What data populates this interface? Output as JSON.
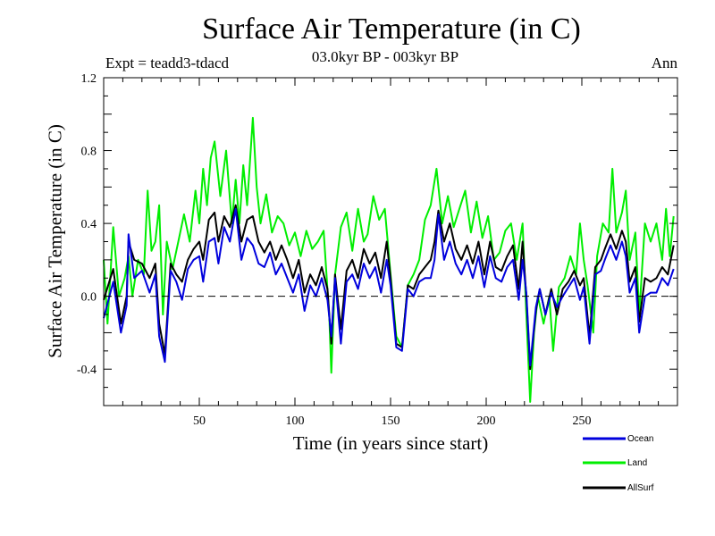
{
  "chart_data": {
    "type": "line",
    "title": "Surface Air Temperature (in C)",
    "subtitle": "03.0kyr BP - 003kyr BP",
    "experiment": "Expt = teadd3-tdacd",
    "season": "Ann",
    "xlabel": "Time (in years since start)",
    "ylabel": "Surface Air Temperature (in C)",
    "xlim": [
      0,
      300
    ],
    "ylim": [
      -0.6,
      1.2
    ],
    "xticks": [
      50,
      100,
      150,
      200,
      250
    ],
    "yticks": [
      -0.4,
      0.0,
      0.4,
      0.8,
      1.2
    ],
    "ytick_labels": [
      "-0.4",
      "0.0",
      "0.4",
      "0.8",
      "1.2"
    ],
    "reference_line": 0.0,
    "series": [
      {
        "name": "Ocean",
        "color": "#0000dd",
        "points": [
          [
            0,
            -0.12
          ],
          [
            5,
            0.08
          ],
          [
            9,
            -0.2
          ],
          [
            12,
            -0.05
          ],
          [
            13,
            0.34
          ],
          [
            16,
            0.1
          ],
          [
            20,
            0.14
          ],
          [
            24,
            0.02
          ],
          [
            27,
            0.12
          ],
          [
            29,
            -0.22
          ],
          [
            32,
            -0.36
          ],
          [
            35,
            0.14
          ],
          [
            38,
            0.08
          ],
          [
            41,
            -0.02
          ],
          [
            44,
            0.15
          ],
          [
            47,
            0.2
          ],
          [
            50,
            0.22
          ],
          [
            52,
            0.08
          ],
          [
            55,
            0.3
          ],
          [
            58,
            0.32
          ],
          [
            60,
            0.18
          ],
          [
            63,
            0.38
          ],
          [
            66,
            0.3
          ],
          [
            69,
            0.48
          ],
          [
            72,
            0.2
          ],
          [
            75,
            0.32
          ],
          [
            78,
            0.28
          ],
          [
            81,
            0.18
          ],
          [
            84,
            0.16
          ],
          [
            87,
            0.24
          ],
          [
            90,
            0.12
          ],
          [
            93,
            0.18
          ],
          [
            96,
            0.1
          ],
          [
            99,
            0.02
          ],
          [
            102,
            0.12
          ],
          [
            105,
            -0.08
          ],
          [
            108,
            0.06
          ],
          [
            111,
            0.0
          ],
          [
            114,
            0.1
          ],
          [
            117,
            -0.02
          ],
          [
            119,
            -0.22
          ],
          [
            121,
            0.1
          ],
          [
            124,
            -0.26
          ],
          [
            127,
            0.08
          ],
          [
            130,
            0.12
          ],
          [
            133,
            0.04
          ],
          [
            136,
            0.18
          ],
          [
            139,
            0.1
          ],
          [
            142,
            0.16
          ],
          [
            145,
            0.02
          ],
          [
            148,
            0.2
          ],
          [
            150,
            0.06
          ],
          [
            153,
            -0.28
          ],
          [
            156,
            -0.3
          ],
          [
            159,
            0.04
          ],
          [
            162,
            0.0
          ],
          [
            165,
            0.08
          ],
          [
            168,
            0.1
          ],
          [
            171,
            0.1
          ],
          [
            173,
            0.2
          ],
          [
            175,
            0.45
          ],
          [
            178,
            0.2
          ],
          [
            181,
            0.3
          ],
          [
            184,
            0.18
          ],
          [
            187,
            0.12
          ],
          [
            190,
            0.2
          ],
          [
            193,
            0.1
          ],
          [
            196,
            0.22
          ],
          [
            199,
            0.05
          ],
          [
            202,
            0.22
          ],
          [
            205,
            0.1
          ],
          [
            208,
            0.08
          ],
          [
            211,
            0.16
          ],
          [
            214,
            0.2
          ],
          [
            217,
            -0.02
          ],
          [
            219,
            0.2
          ],
          [
            221,
            0.02
          ],
          [
            223,
            -0.38
          ],
          [
            226,
            -0.06
          ],
          [
            228,
            0.04
          ],
          [
            231,
            -0.1
          ],
          [
            234,
            0.02
          ],
          [
            237,
            -0.06
          ],
          [
            240,
            0.0
          ],
          [
            243,
            0.05
          ],
          [
            246,
            0.1
          ],
          [
            249,
            -0.02
          ],
          [
            251,
            0.05
          ],
          [
            254,
            -0.26
          ],
          [
            257,
            0.12
          ],
          [
            260,
            0.14
          ],
          [
            262,
            0.2
          ],
          [
            265,
            0.28
          ],
          [
            268,
            0.2
          ],
          [
            271,
            0.3
          ],
          [
            273,
            0.22
          ],
          [
            275,
            0.02
          ],
          [
            278,
            0.1
          ],
          [
            280,
            -0.2
          ],
          [
            283,
            0.0
          ],
          [
            286,
            0.02
          ],
          [
            289,
            0.02
          ],
          [
            292,
            0.1
          ],
          [
            295,
            0.06
          ],
          [
            298,
            0.15
          ]
        ]
      },
      {
        "name": "Land",
        "color": "#00ee00",
        "points": [
          [
            0,
            0.2
          ],
          [
            2,
            -0.15
          ],
          [
            5,
            0.38
          ],
          [
            8,
            0.0
          ],
          [
            11,
            0.1
          ],
          [
            13,
            0.22
          ],
          [
            15,
            0.0
          ],
          [
            18,
            0.2
          ],
          [
            21,
            0.12
          ],
          [
            23,
            0.58
          ],
          [
            25,
            0.25
          ],
          [
            27,
            0.3
          ],
          [
            29,
            0.5
          ],
          [
            31,
            -0.1
          ],
          [
            33,
            0.3
          ],
          [
            36,
            0.15
          ],
          [
            39,
            0.3
          ],
          [
            42,
            0.45
          ],
          [
            45,
            0.3
          ],
          [
            48,
            0.58
          ],
          [
            50,
            0.4
          ],
          [
            52,
            0.7
          ],
          [
            54,
            0.5
          ],
          [
            56,
            0.76
          ],
          [
            58,
            0.85
          ],
          [
            61,
            0.55
          ],
          [
            64,
            0.8
          ],
          [
            67,
            0.4
          ],
          [
            69,
            0.64
          ],
          [
            71,
            0.4
          ],
          [
            73,
            0.72
          ],
          [
            75,
            0.5
          ],
          [
            78,
            0.98
          ],
          [
            80,
            0.6
          ],
          [
            82,
            0.4
          ],
          [
            85,
            0.56
          ],
          [
            88,
            0.35
          ],
          [
            91,
            0.44
          ],
          [
            94,
            0.4
          ],
          [
            97,
            0.28
          ],
          [
            100,
            0.35
          ],
          [
            103,
            0.22
          ],
          [
            106,
            0.36
          ],
          [
            109,
            0.26
          ],
          [
            112,
            0.3
          ],
          [
            115,
            0.36
          ],
          [
            118,
            -0.12
          ],
          [
            119,
            -0.42
          ],
          [
            121,
            0.12
          ],
          [
            124,
            0.38
          ],
          [
            127,
            0.46
          ],
          [
            130,
            0.25
          ],
          [
            133,
            0.48
          ],
          [
            136,
            0.3
          ],
          [
            138,
            0.34
          ],
          [
            141,
            0.55
          ],
          [
            144,
            0.42
          ],
          [
            147,
            0.48
          ],
          [
            150,
            0.12
          ],
          [
            153,
            -0.22
          ],
          [
            156,
            -0.28
          ],
          [
            159,
            0.06
          ],
          [
            162,
            0.12
          ],
          [
            165,
            0.2
          ],
          [
            168,
            0.42
          ],
          [
            171,
            0.5
          ],
          [
            174,
            0.7
          ],
          [
            177,
            0.4
          ],
          [
            180,
            0.55
          ],
          [
            183,
            0.38
          ],
          [
            186,
            0.48
          ],
          [
            189,
            0.58
          ],
          [
            192,
            0.35
          ],
          [
            195,
            0.52
          ],
          [
            198,
            0.32
          ],
          [
            201,
            0.44
          ],
          [
            204,
            0.2
          ],
          [
            207,
            0.24
          ],
          [
            210,
            0.36
          ],
          [
            213,
            0.4
          ],
          [
            216,
            0.2
          ],
          [
            219,
            0.4
          ],
          [
            221,
            -0.1
          ],
          [
            223,
            -0.58
          ],
          [
            225,
            -0.2
          ],
          [
            227,
            0.0
          ],
          [
            230,
            -0.15
          ],
          [
            233,
            0.0
          ],
          [
            235,
            -0.3
          ],
          [
            238,
            0.05
          ],
          [
            241,
            0.1
          ],
          [
            244,
            0.22
          ],
          [
            247,
            0.12
          ],
          [
            249,
            0.4
          ],
          [
            251,
            0.2
          ],
          [
            253,
            0.06
          ],
          [
            256,
            -0.2
          ],
          [
            258,
            0.22
          ],
          [
            261,
            0.4
          ],
          [
            264,
            0.35
          ],
          [
            266,
            0.7
          ],
          [
            268,
            0.35
          ],
          [
            271,
            0.46
          ],
          [
            273,
            0.58
          ],
          [
            275,
            0.2
          ],
          [
            278,
            0.35
          ],
          [
            280,
            -0.1
          ],
          [
            283,
            0.4
          ],
          [
            286,
            0.3
          ],
          [
            289,
            0.4
          ],
          [
            292,
            0.2
          ],
          [
            294,
            0.48
          ],
          [
            296,
            0.22
          ],
          [
            298,
            0.44
          ]
        ]
      },
      {
        "name": "AllSurf",
        "color": "#000000",
        "points": [
          [
            0,
            -0.02
          ],
          [
            5,
            0.15
          ],
          [
            9,
            -0.15
          ],
          [
            12,
            0.0
          ],
          [
            13,
            0.3
          ],
          [
            16,
            0.2
          ],
          [
            20,
            0.18
          ],
          [
            24,
            0.1
          ],
          [
            27,
            0.18
          ],
          [
            29,
            -0.15
          ],
          [
            32,
            -0.32
          ],
          [
            35,
            0.18
          ],
          [
            38,
            0.12
          ],
          [
            41,
            0.08
          ],
          [
            44,
            0.2
          ],
          [
            47,
            0.26
          ],
          [
            50,
            0.3
          ],
          [
            52,
            0.2
          ],
          [
            55,
            0.42
          ],
          [
            58,
            0.46
          ],
          [
            60,
            0.3
          ],
          [
            63,
            0.44
          ],
          [
            66,
            0.38
          ],
          [
            69,
            0.5
          ],
          [
            72,
            0.3
          ],
          [
            75,
            0.42
          ],
          [
            78,
            0.44
          ],
          [
            81,
            0.3
          ],
          [
            84,
            0.24
          ],
          [
            87,
            0.3
          ],
          [
            90,
            0.2
          ],
          [
            93,
            0.28
          ],
          [
            96,
            0.2
          ],
          [
            99,
            0.1
          ],
          [
            102,
            0.2
          ],
          [
            105,
            0.02
          ],
          [
            108,
            0.12
          ],
          [
            111,
            0.06
          ],
          [
            114,
            0.16
          ],
          [
            117,
            0.04
          ],
          [
            119,
            -0.26
          ],
          [
            121,
            0.12
          ],
          [
            124,
            -0.18
          ],
          [
            127,
            0.14
          ],
          [
            130,
            0.2
          ],
          [
            133,
            0.1
          ],
          [
            136,
            0.26
          ],
          [
            139,
            0.18
          ],
          [
            142,
            0.24
          ],
          [
            145,
            0.1
          ],
          [
            148,
            0.3
          ],
          [
            150,
            0.1
          ],
          [
            153,
            -0.26
          ],
          [
            156,
            -0.28
          ],
          [
            159,
            0.06
          ],
          [
            162,
            0.04
          ],
          [
            165,
            0.12
          ],
          [
            168,
            0.16
          ],
          [
            171,
            0.2
          ],
          [
            173,
            0.3
          ],
          [
            175,
            0.47
          ],
          [
            178,
            0.3
          ],
          [
            181,
            0.4
          ],
          [
            184,
            0.26
          ],
          [
            187,
            0.2
          ],
          [
            190,
            0.28
          ],
          [
            193,
            0.18
          ],
          [
            196,
            0.3
          ],
          [
            199,
            0.12
          ],
          [
            202,
            0.3
          ],
          [
            205,
            0.16
          ],
          [
            208,
            0.14
          ],
          [
            211,
            0.22
          ],
          [
            214,
            0.28
          ],
          [
            217,
            0.04
          ],
          [
            219,
            0.3
          ],
          [
            221,
            0.0
          ],
          [
            223,
            -0.4
          ],
          [
            226,
            -0.08
          ],
          [
            228,
            0.04
          ],
          [
            231,
            -0.1
          ],
          [
            234,
            0.04
          ],
          [
            237,
            -0.1
          ],
          [
            240,
            0.04
          ],
          [
            243,
            0.08
          ],
          [
            246,
            0.14
          ],
          [
            249,
            0.06
          ],
          [
            251,
            0.1
          ],
          [
            254,
            -0.22
          ],
          [
            257,
            0.16
          ],
          [
            260,
            0.2
          ],
          [
            262,
            0.26
          ],
          [
            265,
            0.34
          ],
          [
            268,
            0.26
          ],
          [
            271,
            0.36
          ],
          [
            273,
            0.3
          ],
          [
            275,
            0.08
          ],
          [
            278,
            0.16
          ],
          [
            280,
            -0.14
          ],
          [
            283,
            0.1
          ],
          [
            286,
            0.08
          ],
          [
            289,
            0.1
          ],
          [
            292,
            0.16
          ],
          [
            295,
            0.12
          ],
          [
            298,
            0.28
          ]
        ]
      }
    ]
  }
}
